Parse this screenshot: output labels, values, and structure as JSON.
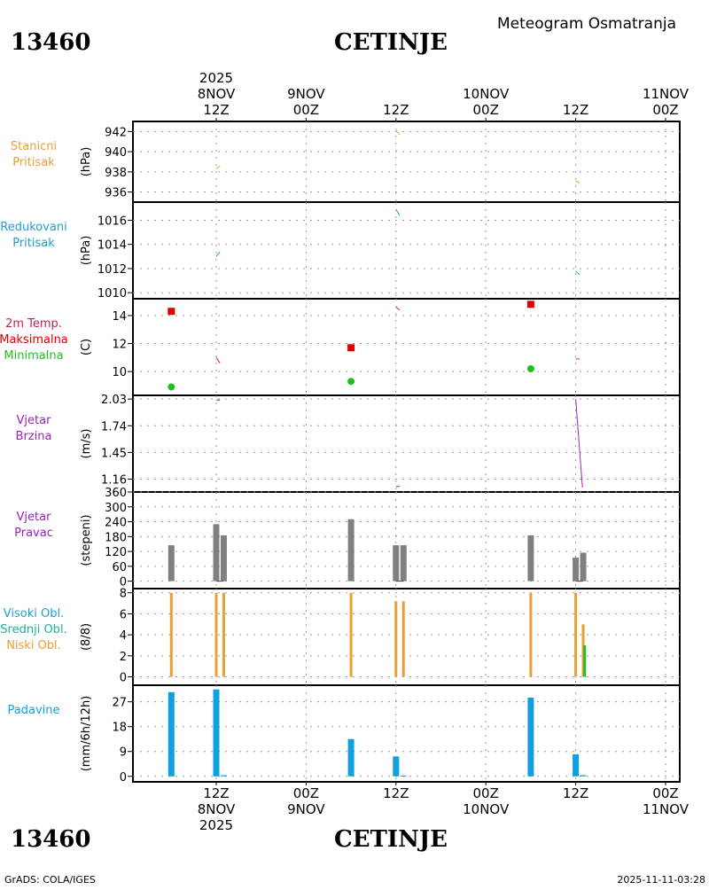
{
  "header": {
    "station_id": "13460",
    "station_name": "CETINJE",
    "title": "Meteogram Osmatranja"
  },
  "footer": {
    "station_id": "13460",
    "station_name": "CETINJE",
    "credit": "GrADS: COLA/IGES",
    "timestamp": "2025-11-11-03:28"
  },
  "time_axis": {
    "year": "2025",
    "ticks": [
      {
        "hour": 12,
        "line1": "12Z",
        "line2": "8NOV"
      },
      {
        "hour": 24,
        "line1": "00Z",
        "line2": "9NOV"
      },
      {
        "hour": 36,
        "line1": "12Z",
        "line2": ""
      },
      {
        "hour": 48,
        "line1": "00Z",
        "line2": "10NOV"
      },
      {
        "hour": 60,
        "line1": "12Z",
        "line2": ""
      },
      {
        "hour": 72,
        "line1": "00Z",
        "line2": "11NOV"
      }
    ]
  },
  "colors": {
    "orange": "#e8a030",
    "cyan": "#20a0d0",
    "maroon": "#c0205a",
    "red": "#e00000",
    "green": "#20c020",
    "purple": "#a020c0",
    "gray": "#808080",
    "teal": "#20b0a0",
    "blue": "#10a0e0"
  },
  "chart_data": [
    {
      "type": "line",
      "name": "station-pressure",
      "label_lines": [
        "Stanicni",
        "Pritisak"
      ],
      "label_color": "#e8a030",
      "unit": "(hPa)",
      "ylim": [
        935,
        943
      ],
      "yticks": [
        936,
        938,
        940,
        942
      ],
      "series": [
        {
          "name": "Stanicni Pritisak",
          "color": "#e8a030",
          "segments": [
            [
              [
                12,
                938.3
              ],
              [
                12.5,
                938.6
              ]
            ],
            [
              [
                36,
                942.1
              ],
              [
                36.5,
                941.7
              ]
            ],
            [
              [
                60,
                937.1
              ],
              [
                60.5,
                936.9
              ]
            ]
          ]
        }
      ]
    },
    {
      "type": "line",
      "name": "reduced-pressure",
      "label_lines": [
        "Redukovani",
        "Pritisak"
      ],
      "label_color": "#20a0d0",
      "unit": "(hPa)",
      "ylim": [
        1009.5,
        1017.5
      ],
      "yticks": [
        1010,
        1012,
        1014,
        1016
      ],
      "series": [
        {
          "name": "Redukovani Pritisak",
          "color": "#20a0d0",
          "segments": [
            [
              [
                12,
                1013.0
              ],
              [
                12.5,
                1013.4
              ]
            ],
            [
              [
                36,
                1016.9
              ],
              [
                36.5,
                1016.4
              ]
            ],
            [
              [
                60,
                1011.8
              ],
              [
                60.5,
                1011.5
              ]
            ]
          ]
        }
      ]
    },
    {
      "type": "scatter",
      "name": "temperature",
      "label_lines": [
        "2m Temp.",
        "Maksimalna",
        "Minimalna"
      ],
      "label_colors": [
        "#c0205a",
        "#e00000",
        "#20c020"
      ],
      "unit": "(C)",
      "ylim": [
        8.3,
        15.2
      ],
      "yticks": [
        10,
        12,
        14
      ],
      "temp_line": {
        "color": "#c0205a",
        "segments": [
          [
            [
              12,
              11.0
            ],
            [
              12.5,
              10.6
            ]
          ],
          [
            [
              36,
              14.6
            ],
            [
              36.5,
              14.4
            ]
          ],
          [
            [
              60,
              10.9
            ],
            [
              60.5,
              10.9
            ]
          ]
        ]
      },
      "max": {
        "color": "#e00000",
        "points": [
          [
            6,
            14.3
          ],
          [
            30,
            11.7
          ],
          [
            54,
            14.8
          ]
        ]
      },
      "min": {
        "color": "#20c020",
        "points": [
          [
            6,
            8.9
          ],
          [
            30,
            9.3
          ],
          [
            54,
            10.2
          ]
        ]
      }
    },
    {
      "type": "line",
      "name": "wind-speed",
      "label_lines": [
        "Vjetar",
        "Brzina"
      ],
      "label_color": "#a020c0",
      "unit": "(m/s)",
      "ylim": [
        1.02,
        2.07
      ],
      "yticks": [
        1.16,
        1.45,
        1.74,
        2.03
      ],
      "ytick_labels": [
        "1.16",
        "1.45",
        "1.74",
        "2.03"
      ],
      "series": [
        {
          "name": "Vjetar Brzina",
          "color": "#a020c0",
          "segments": [
            [
              [
                12,
                2.02
              ],
              [
                12.5,
                2.02
              ]
            ],
            [
              [
                36,
                1.08
              ],
              [
                36.5,
                1.08
              ]
            ],
            [
              [
                60,
                2.03
              ],
              [
                60.9,
                1.07
              ]
            ]
          ]
        }
      ]
    },
    {
      "type": "bar",
      "name": "wind-direction",
      "label_lines": [
        "Vjetar",
        "Pravac"
      ],
      "label_color": "#a020c0",
      "unit": "(stepeni)",
      "ylim": [
        -30,
        360
      ],
      "yticks": [
        0,
        60,
        120,
        180,
        240,
        300,
        360
      ],
      "bar_color": "#808080",
      "bars": [
        {
          "x": 6,
          "value": 145
        },
        {
          "x": 12,
          "value": 230
        },
        {
          "x": 13,
          "value": 185
        },
        {
          "x": 30,
          "value": 250
        },
        {
          "x": 36,
          "value": 145
        },
        {
          "x": 37,
          "value": 145
        },
        {
          "x": 54,
          "value": 185
        },
        {
          "x": 60,
          "value": 95
        },
        {
          "x": 61,
          "value": 115
        }
      ],
      "marks": {
        "color": "#e00000",
        "x": [
          12.5,
          36.5,
          60.5
        ]
      }
    },
    {
      "type": "bar",
      "name": "cloud-cover",
      "label_lines": [
        "Visoki Obl.",
        "Srednji Obl.",
        "Niski Obl."
      ],
      "label_colors": [
        "#20a0d0",
        "#20b0a0",
        "#e8a030"
      ],
      "unit": "(8/8)",
      "ylim": [
        -0.8,
        8.4
      ],
      "yticks": [
        0,
        2,
        4,
        6,
        8
      ],
      "series": [
        {
          "name": "Niski Obl.",
          "color": "#e8a030",
          "bars": [
            [
              6,
              8
            ],
            [
              12,
              8
            ],
            [
              13,
              8
            ],
            [
              30,
              8
            ],
            [
              36,
              7.2
            ],
            [
              37,
              7.2
            ],
            [
              54,
              8
            ],
            [
              60,
              8
            ],
            [
              61,
              5
            ]
          ]
        },
        {
          "name": "Srednji Obl.",
          "color": "#20c020",
          "bars": [
            [
              61.2,
              3
            ]
          ]
        }
      ]
    },
    {
      "type": "bar",
      "name": "precipitation",
      "label_lines": [
        "Padavine"
      ],
      "label_color": "#10a0e0",
      "unit": "(mm/6h/12h)",
      "ylim": [
        -2,
        33
      ],
      "yticks": [
        0,
        9,
        18,
        27
      ],
      "bar_color": "#10a0e0",
      "bars": [
        {
          "x": 6,
          "value": 30.5
        },
        {
          "x": 12,
          "value": 31.5
        },
        {
          "x": 13,
          "value": 0.4
        },
        {
          "x": 30,
          "value": 13.5
        },
        {
          "x": 36,
          "value": 7.2
        },
        {
          "x": 37,
          "value": 0.3
        },
        {
          "x": 54,
          "value": 28.5
        },
        {
          "x": 60,
          "value": 8.0
        },
        {
          "x": 61,
          "value": 0.4
        }
      ]
    }
  ]
}
